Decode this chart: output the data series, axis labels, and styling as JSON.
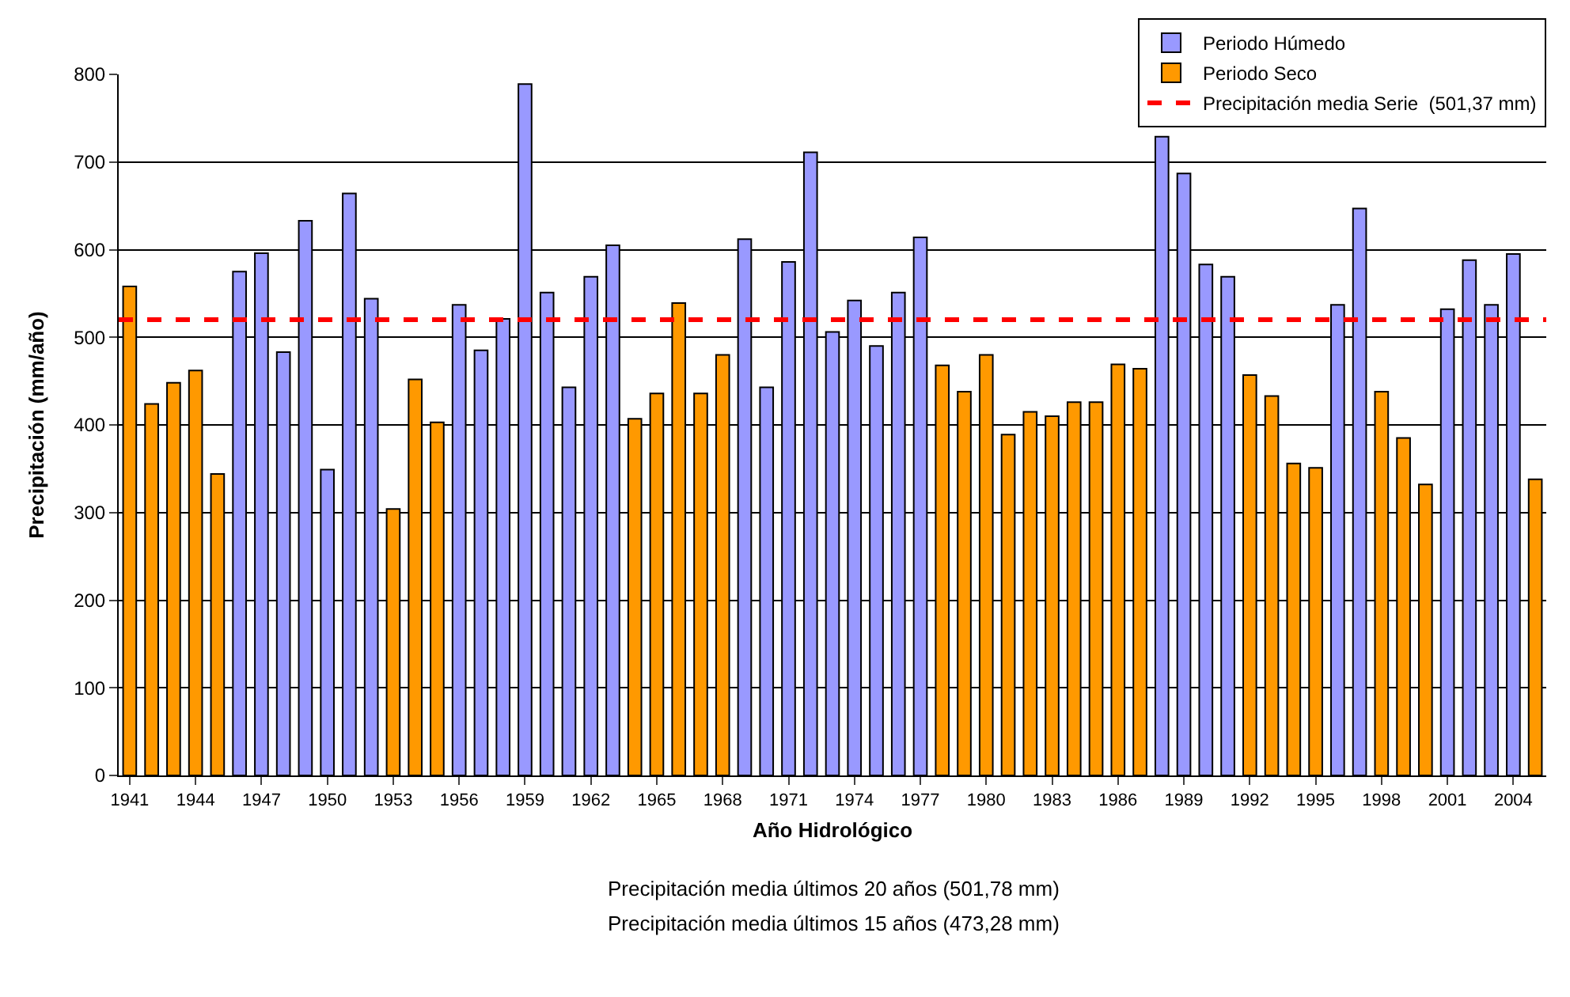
{
  "chart_data": {
    "type": "bar",
    "xlabel": "Año Hidrológico",
    "ylabel": "Precipitación (mm/año)",
    "categories": [
      "1941",
      null,
      null,
      "1944",
      null,
      null,
      "1947",
      null,
      null,
      "1950",
      null,
      null,
      "1953",
      null,
      null,
      "1956",
      null,
      null,
      "1959",
      null,
      null,
      "1962",
      null,
      null,
      "1965",
      null,
      null,
      "1968",
      null,
      null,
      "1971",
      null,
      null,
      "1974",
      null,
      null,
      "1977",
      null,
      null,
      "1980",
      null,
      null,
      "1983",
      null,
      null,
      "1986",
      null,
      null,
      "1989",
      null,
      null,
      "1992",
      null,
      null,
      "1995",
      null,
      null,
      "1998",
      null,
      null,
      "2001",
      null,
      null,
      "2004",
      null
    ],
    "series": [
      {
        "name": "Periodo Húmedo",
        "color": "#9999ff",
        "values": [
          null,
          null,
          null,
          null,
          null,
          575,
          596,
          483,
          633,
          349,
          664,
          544,
          null,
          null,
          null,
          537,
          485,
          521,
          789,
          551,
          443,
          569,
          605,
          null,
          null,
          null,
          null,
          null,
          612,
          443,
          586,
          711,
          506,
          542,
          490,
          551,
          614,
          null,
          null,
          null,
          null,
          null,
          null,
          null,
          null,
          null,
          null,
          729,
          687,
          583,
          569,
          null,
          null,
          null,
          null,
          537,
          647,
          null,
          null,
          null,
          532,
          588,
          537,
          595,
          null
        ]
      },
      {
        "name": "Periodo Seco",
        "color": "#ff9900",
        "values": [
          558,
          424,
          448,
          462,
          344,
          null,
          null,
          null,
          null,
          null,
          null,
          null,
          304,
          452,
          403,
          null,
          null,
          null,
          null,
          null,
          null,
          null,
          null,
          407,
          436,
          539,
          436,
          480,
          null,
          null,
          null,
          null,
          null,
          null,
          null,
          null,
          null,
          468,
          438,
          480,
          389,
          415,
          410,
          426,
          426,
          469,
          464,
          null,
          null,
          null,
          null,
          457,
          433,
          356,
          351,
          null,
          null,
          438,
          385,
          332,
          null,
          null,
          null,
          null,
          338
        ]
      }
    ],
    "ref_lines": [
      {
        "axis": "y",
        "value": 520,
        "label": "Precipitación media Serie  (501,37 mm)",
        "color": "#ff0000",
        "line_style": "dashed"
      }
    ],
    "annotations": [
      "Precipitación media últimos 20 años (501,78 mm)",
      "Precipitación media últimos 15 años (473,28 mm)"
    ],
    "ylim": [
      0,
      800
    ],
    "yticks": [
      0,
      100,
      200,
      300,
      400,
      500,
      600,
      700,
      800
    ],
    "grid": "y",
    "legend": "top right"
  }
}
